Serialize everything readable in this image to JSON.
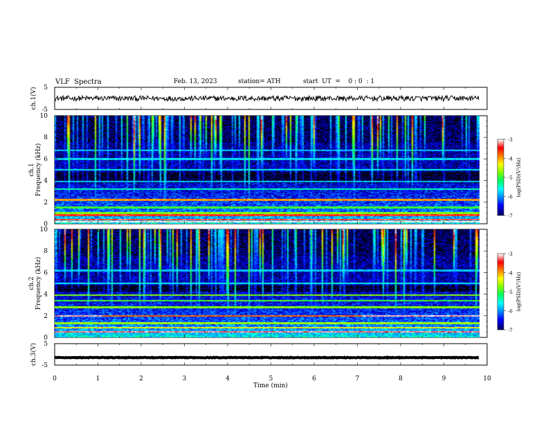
{
  "header": {
    "title": "VLF  Spectra",
    "date": "Feb. 13, 2023",
    "station": "station= ATH",
    "start": "start  UT  =    0 : 0  : 1"
  },
  "chart_data": {
    "type": "heatmap",
    "x_axis": {
      "label": "Time  (min)",
      "range": [
        0,
        10
      ],
      "ticks": [
        "0",
        "1",
        "2",
        "3",
        "4",
        "5",
        "6",
        "7",
        "8",
        "9",
        "10"
      ],
      "data_end_min": 9.82
    },
    "panels": [
      {
        "id": "ch1-waveform",
        "kind": "line",
        "ylabel": "ch.1(V)",
        "ylim": [
          -5,
          5
        ],
        "yticks": [
          "5",
          "-5"
        ],
        "trace_level_v": 0.0,
        "trace_noise_v": 1.2
      },
      {
        "id": "ch1-spectrogram",
        "kind": "heatmap",
        "ylabel_line1": "ch.1",
        "ylabel_line2": "Frequency  (kHz)",
        "ylim": [
          0,
          10
        ],
        "yticks": [
          "0",
          "2",
          "4",
          "6",
          "8",
          "10"
        ],
        "colorbar": {
          "label": "log(PSD)(V²/Hz)",
          "ticks": [
            "-3",
            "-4",
            "-5",
            "-6",
            "-7"
          ],
          "range": [
            -7,
            -3
          ]
        },
        "bands_khz": [
          {
            "f": 0.2,
            "level": -3.0
          },
          {
            "f": 0.4,
            "level": -3.3
          },
          {
            "f": 0.8,
            "level": -3.4
          },
          {
            "f": 1.0,
            "level": -4.6
          },
          {
            "f": 1.5,
            "level": -4.8
          },
          {
            "f": 2.2,
            "level": -3.9
          },
          {
            "f": 3.2,
            "level": -5.2
          },
          {
            "f": 3.9,
            "level": -5.6
          },
          {
            "f": 5.0,
            "level": -5.4
          },
          {
            "f": 6.0,
            "level": -5.5
          },
          {
            "f": 6.8,
            "level": -5.6
          }
        ],
        "dark_band_khz": [
          3.8,
          4.8
        ]
      },
      {
        "id": "ch2-spectrogram",
        "kind": "heatmap",
        "ylabel_line1": "ch.2",
        "ylabel_line2": "Frequency  (kHz)",
        "ylim": [
          0,
          10
        ],
        "yticks": [
          "0",
          "2",
          "4",
          "6",
          "8",
          "10"
        ],
        "colorbar": {
          "label": "log(PSD)(V²/Hz)",
          "ticks": [
            "-3",
            "-4",
            "-5",
            "-6",
            "-7"
          ],
          "range": [
            -7,
            -3
          ]
        },
        "bands_khz": [
          {
            "f": 0.5,
            "level": -3.2
          },
          {
            "f": 0.9,
            "level": -4.2
          },
          {
            "f": 1.3,
            "level": -4.5
          },
          {
            "f": 2.0,
            "level": -3.1
          },
          {
            "f": 2.8,
            "level": -4.6
          },
          {
            "f": 3.4,
            "level": -4.8
          },
          {
            "f": 3.9,
            "level": -4.6
          },
          {
            "f": 5.0,
            "level": -5.4
          },
          {
            "f": 6.2,
            "level": -5.6
          }
        ],
        "dark_band_khz": [
          4.2,
          4.8
        ]
      },
      {
        "id": "ch3-waveform",
        "kind": "line",
        "ylabel": "ch.3(V)",
        "ylim": [
          -5,
          5
        ],
        "yticks": [
          "5",
          "-5"
        ],
        "trace_level_v": -1.5,
        "trace_noise_v": 0.15
      }
    ]
  },
  "colors": {
    "scale": [
      "#000000",
      "#000080",
      "#0000ff",
      "#0090ff",
      "#00ffff",
      "#00ff60",
      "#80ff00",
      "#ffff00",
      "#ff8000",
      "#ff0000",
      "#ffffff"
    ]
  }
}
